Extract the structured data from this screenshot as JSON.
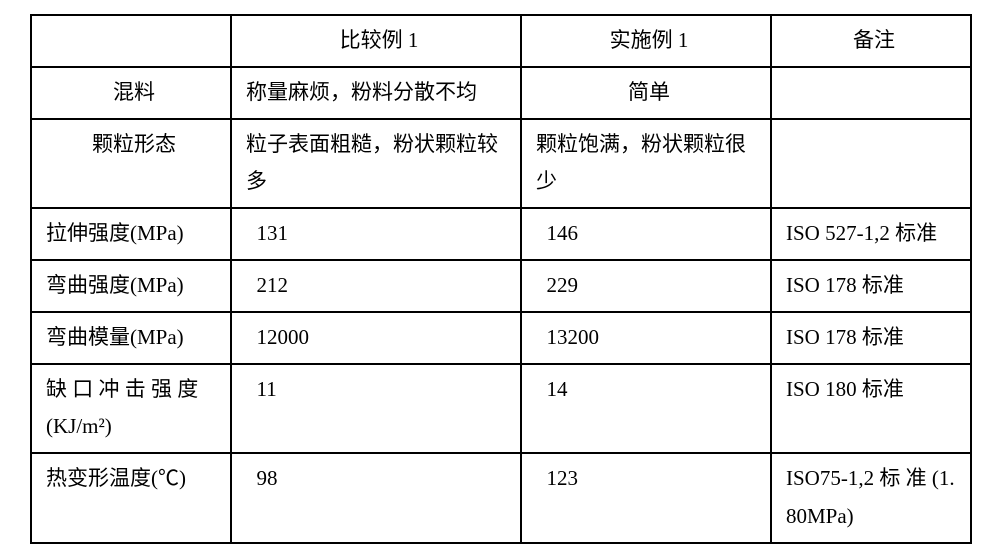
{
  "table": {
    "header": {
      "c0": "",
      "c1": "比较例 1",
      "c2": "实施例 1",
      "c3": "备注"
    },
    "rows": [
      {
        "c0": "混料",
        "c1": "称量麻烦，粉料分散不均",
        "c2": "简单",
        "c3": ""
      },
      {
        "c0": "颗粒形态",
        "c1": "粒子表面粗糙，粉状颗粒较多",
        "c2": "颗粒饱满，粉状颗粒很少",
        "c3": ""
      },
      {
        "c0": "拉伸强度(MPa)",
        "c1": "131",
        "c2": "146",
        "c3": "ISO 527-1,2 标准"
      },
      {
        "c0": "弯曲强度(MPa)",
        "c1": "212",
        "c2": "229",
        "c3": "ISO 178 标准"
      },
      {
        "c0": "弯曲模量(MPa)",
        "c1": "12000",
        "c2": "13200",
        "c3": "ISO 178 标准"
      },
      {
        "c0": "缺 口 冲 击 强 度 (KJ/m²)",
        "c1": "11",
        "c2": "14",
        "c3": "ISO 180 标准"
      },
      {
        "c0": "热变形温度(℃)",
        "c1": "98",
        "c2": "123",
        "c3": "ISO75-1,2 标 准 (1.80MPa)"
      }
    ]
  }
}
